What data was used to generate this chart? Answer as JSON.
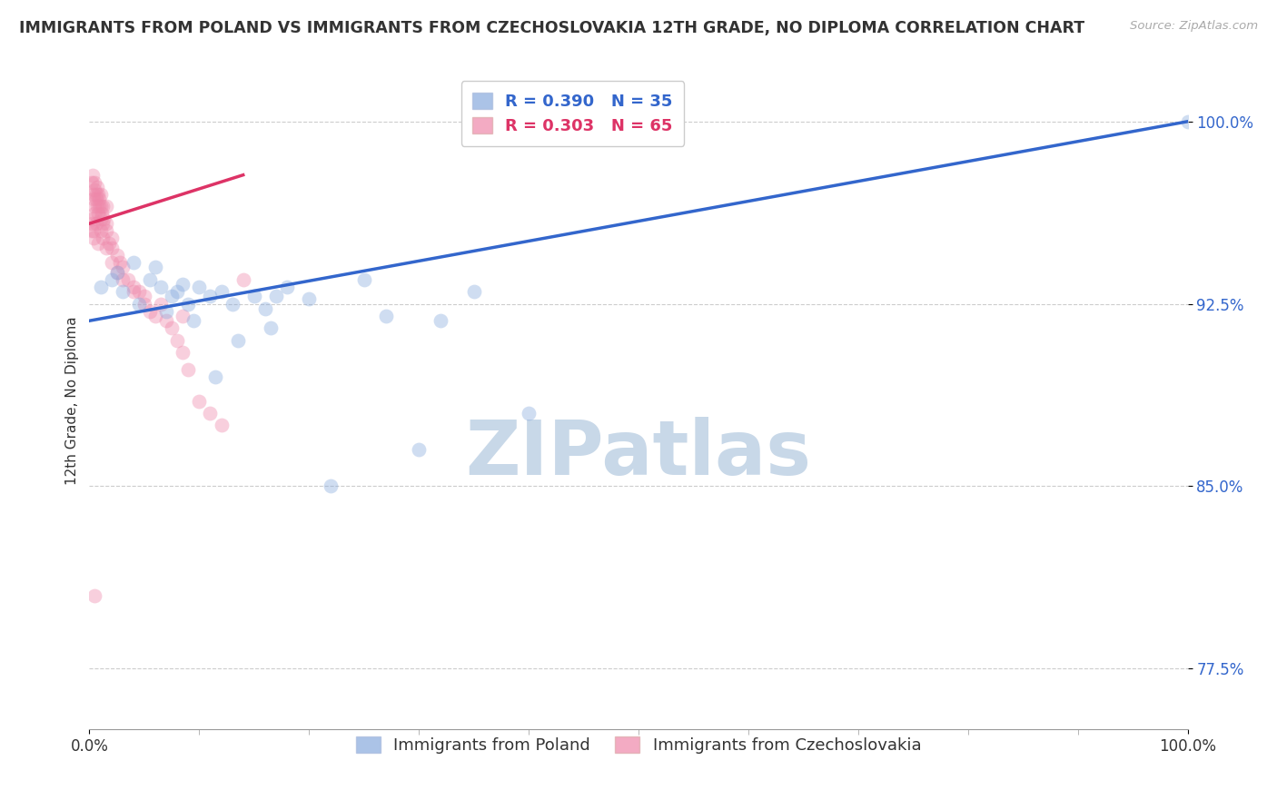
{
  "title": "IMMIGRANTS FROM POLAND VS IMMIGRANTS FROM CZECHOSLOVAKIA 12TH GRADE, NO DIPLOMA CORRELATION CHART",
  "source": "Source: ZipAtlas.com",
  "ylabel": "12th Grade, No Diploma",
  "legend_entries": [
    {
      "label": "R = 0.390   N = 35",
      "color": "#6699cc"
    },
    {
      "label": "R = 0.303   N = 65",
      "color": "#ff9999"
    }
  ],
  "legend_bottom": [
    {
      "label": "Immigrants from Poland",
      "color": "#6699cc"
    },
    {
      "label": "Immigrants from Czechoslovakia",
      "color": "#ff9999"
    }
  ],
  "blue_scatter_x": [
    1.0,
    2.0,
    2.5,
    4.0,
    5.5,
    6.0,
    6.5,
    7.5,
    8.0,
    8.5,
    9.0,
    10.0,
    11.0,
    12.0,
    13.0,
    15.0,
    16.0,
    17.0,
    18.0,
    20.0,
    25.0,
    27.0,
    30.0,
    32.0,
    35.0,
    100.0,
    3.0,
    4.5,
    7.0,
    9.5,
    11.5,
    13.5,
    16.5,
    22.0,
    40.0
  ],
  "blue_scatter_y": [
    93.2,
    93.5,
    93.8,
    94.2,
    93.5,
    94.0,
    93.2,
    92.8,
    93.0,
    93.3,
    92.5,
    93.2,
    92.8,
    93.0,
    92.5,
    92.8,
    92.3,
    92.8,
    93.2,
    92.7,
    93.5,
    92.0,
    86.5,
    91.8,
    93.0,
    100.0,
    93.0,
    92.5,
    92.2,
    91.8,
    89.5,
    91.0,
    91.5,
    85.0,
    88.0
  ],
  "pink_scatter_x": [
    0.2,
    0.3,
    0.4,
    0.4,
    0.5,
    0.5,
    0.5,
    0.6,
    0.6,
    0.7,
    0.7,
    0.8,
    0.8,
    0.9,
    0.9,
    1.0,
    1.0,
    1.0,
    1.1,
    1.2,
    1.2,
    1.3,
    1.5,
    1.5,
    1.5,
    1.8,
    2.0,
    2.0,
    2.5,
    2.8,
    3.0,
    3.5,
    4.0,
    4.5,
    5.0,
    5.5,
    6.0,
    7.0,
    7.5,
    8.0,
    8.5,
    9.0,
    10.0,
    11.0,
    12.0,
    0.3,
    0.4,
    0.5,
    0.6,
    0.8,
    1.0,
    1.2,
    1.5,
    2.0,
    2.5,
    3.0,
    4.0,
    5.0,
    6.5,
    8.5,
    0.2,
    0.3,
    0.4,
    14.0,
    0.5
  ],
  "pink_scatter_y": [
    97.5,
    97.8,
    97.0,
    96.8,
    97.2,
    97.5,
    96.5,
    97.0,
    96.8,
    97.3,
    96.5,
    97.0,
    96.2,
    96.8,
    96.5,
    96.5,
    96.0,
    97.0,
    96.2,
    96.5,
    95.8,
    96.0,
    96.5,
    95.5,
    95.8,
    95.0,
    95.2,
    94.8,
    94.5,
    94.2,
    94.0,
    93.5,
    93.2,
    93.0,
    92.5,
    92.2,
    92.0,
    91.8,
    91.5,
    91.0,
    90.5,
    89.8,
    88.5,
    88.0,
    87.5,
    96.0,
    95.5,
    96.2,
    95.8,
    95.0,
    95.5,
    95.2,
    94.8,
    94.2,
    93.8,
    93.5,
    93.0,
    92.8,
    92.5,
    92.0,
    95.5,
    95.8,
    95.2,
    93.5,
    80.5
  ],
  "blue_line_x": [
    0.0,
    100.0
  ],
  "blue_line_y": [
    91.8,
    100.0
  ],
  "pink_line_x": [
    0.0,
    14.0
  ],
  "pink_line_y": [
    95.8,
    97.8
  ],
  "xlim": [
    0,
    100
  ],
  "ylim": [
    75.0,
    102.0
  ],
  "yticks": [
    77.5,
    85.0,
    92.5,
    100.0
  ],
  "xticks": [
    0,
    100
  ],
  "background_color": "#ffffff",
  "grid_color": "#cccccc",
  "blue_color": "#88aadd",
  "pink_color": "#ee88aa",
  "blue_line_color": "#3366cc",
  "pink_line_color": "#dd3366",
  "tick_color": "#3366cc",
  "scatter_size": 130,
  "scatter_alpha": 0.4,
  "title_fontsize": 12.5,
  "axis_label_fontsize": 11,
  "tick_fontsize": 12,
  "legend_fontsize": 13,
  "watermark_text": "ZIPatlas",
  "watermark_color": "#c8d8e8",
  "watermark_fontsize": 60
}
